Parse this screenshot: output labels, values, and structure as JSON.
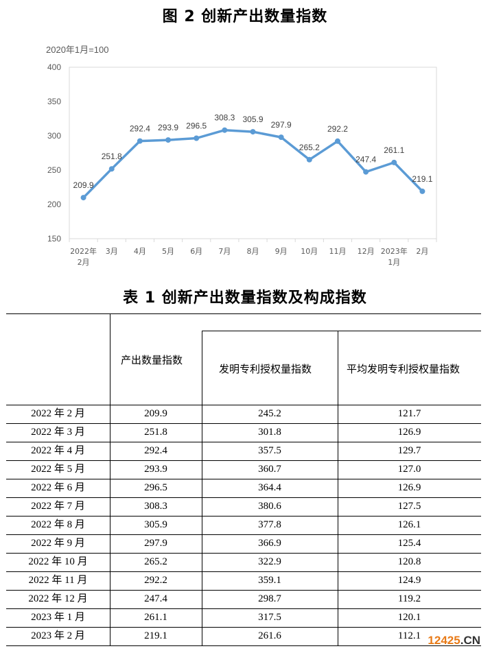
{
  "figure": {
    "title": "图 2 创新产出数量指数",
    "base_note": "2020年1月=100"
  },
  "chart_data": {
    "type": "line",
    "title": "图 2 创新产出数量指数",
    "unit_note": "2020年1月=100",
    "x_labels": [
      [
        "2022年",
        "2月"
      ],
      [
        "3月"
      ],
      [
        "4月"
      ],
      [
        "5月"
      ],
      [
        "6月"
      ],
      [
        "7月"
      ],
      [
        "8月"
      ],
      [
        "9月"
      ],
      [
        "10月"
      ],
      [
        "11月"
      ],
      [
        "12月"
      ],
      [
        "2023年",
        "1月"
      ],
      [
        "2月"
      ]
    ],
    "values": [
      209.9,
      251.8,
      292.4,
      293.9,
      296.5,
      308.3,
      305.9,
      297.9,
      265.2,
      292.2,
      247.4,
      261.1,
      219.1
    ],
    "data_labels": [
      "209.9",
      "251.8",
      "292.4",
      "293.9",
      "296.5",
      "308.3",
      "305.9",
      "297.9",
      "265.2",
      "292.2",
      "247.4",
      "261.1",
      "219.1"
    ],
    "ylim": [
      150,
      400
    ],
    "yticks": [
      150,
      200,
      250,
      300,
      350,
      400
    ],
    "grid": false,
    "legend": "none",
    "line_color": "#5b9bd5"
  },
  "table": {
    "title": "表 1 创新产出数量指数及构成指数",
    "headers": {
      "output": "产出数量指数",
      "patent": "发明专利授权量指数",
      "avg_patent": "平均发明专利授权量指数"
    },
    "rows": [
      [
        "2022 年 2 月",
        "209.9",
        "245.2",
        "121.7"
      ],
      [
        "2022 年 3 月",
        "251.8",
        "301.8",
        "126.9"
      ],
      [
        "2022 年 4 月",
        "292.4",
        "357.5",
        "129.7"
      ],
      [
        "2022 年 5 月",
        "293.9",
        "360.7",
        "127.0"
      ],
      [
        "2022 年 6 月",
        "296.5",
        "364.4",
        "126.9"
      ],
      [
        "2022 年 7 月",
        "308.3",
        "380.6",
        "127.5"
      ],
      [
        "2022 年 8 月",
        "305.9",
        "377.8",
        "126.1"
      ],
      [
        "2022 年 9 月",
        "297.9",
        "366.9",
        "125.4"
      ],
      [
        "2022 年 10 月",
        "265.2",
        "322.9",
        "120.8"
      ],
      [
        "2022 年 11 月",
        "292.2",
        "359.1",
        "124.9"
      ],
      [
        "2022 年 12 月",
        "247.4",
        "298.7",
        "119.2"
      ],
      [
        "2023 年 1 月",
        "261.1",
        "317.5",
        "120.1"
      ],
      [
        "2023 年 2 月",
        "219.1",
        "261.6",
        "112.1"
      ]
    ]
  },
  "watermark": {
    "number": "12425",
    "dot": ".",
    "suffix": "CN"
  }
}
